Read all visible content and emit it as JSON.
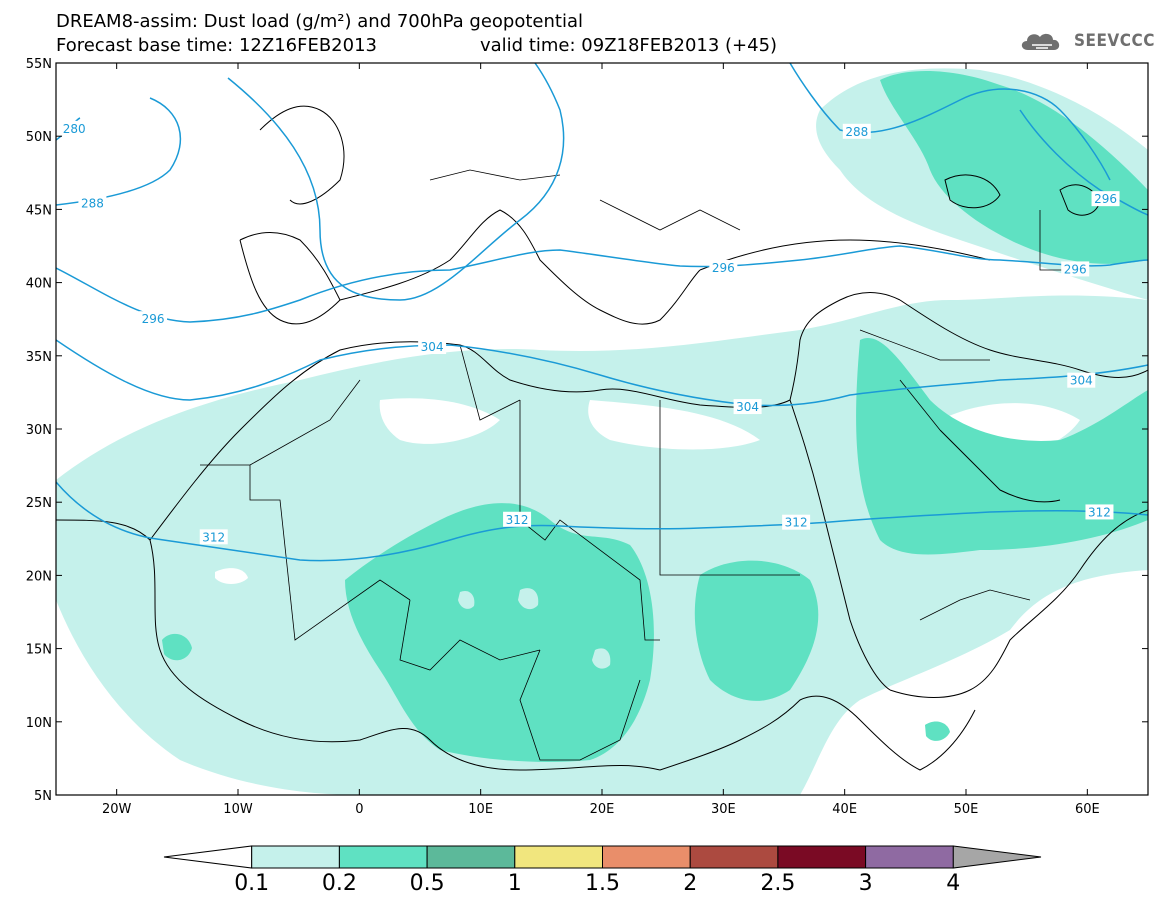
{
  "header": {
    "title_line1": "DREAM8-assim: Dust load (g/m²) and 700hPa geopotential",
    "title_line2": "Forecast base time: 12Z16FEB2013",
    "valid_time": "valid time: 09Z18FEB2013 (+45)",
    "brand": "SEEVCCC"
  },
  "map": {
    "lon_range": [
      -25,
      65
    ],
    "lat_range": [
      5,
      55
    ],
    "lat_ticks": [
      {
        "value": 55,
        "label": "55N"
      },
      {
        "value": 50,
        "label": "50N"
      },
      {
        "value": 45,
        "label": "45N"
      },
      {
        "value": 40,
        "label": "40N"
      },
      {
        "value": 35,
        "label": "35N"
      },
      {
        "value": 30,
        "label": "30N"
      },
      {
        "value": 25,
        "label": "25N"
      },
      {
        "value": 20,
        "label": "20N"
      },
      {
        "value": 15,
        "label": "15N"
      },
      {
        "value": 10,
        "label": "10N"
      },
      {
        "value": 5,
        "label": "5N"
      }
    ],
    "lon_ticks": [
      {
        "value": -20,
        "label": "20W"
      },
      {
        "value": -10,
        "label": "10W"
      },
      {
        "value": 0,
        "label": "0"
      },
      {
        "value": 10,
        "label": "10E"
      },
      {
        "value": 20,
        "label": "20E"
      },
      {
        "value": 30,
        "label": "30E"
      },
      {
        "value": 40,
        "label": "40E"
      },
      {
        "value": 50,
        "label": "50E"
      },
      {
        "value": 60,
        "label": "60E"
      }
    ],
    "contour_color": "#1a9ad6",
    "contour_labels": [
      {
        "text": "280",
        "lon": -23.5,
        "lat": 50.5
      },
      {
        "text": "288",
        "lon": -22,
        "lat": 45.4
      },
      {
        "text": "288",
        "lon": 41,
        "lat": 50.3
      },
      {
        "text": "296",
        "lon": -17,
        "lat": 37.5
      },
      {
        "text": "296",
        "lon": 30,
        "lat": 41.0
      },
      {
        "text": "296",
        "lon": 61.5,
        "lat": 45.7
      },
      {
        "text": "296",
        "lon": 59,
        "lat": 40.9
      },
      {
        "text": "304",
        "lon": 6,
        "lat": 35.6
      },
      {
        "text": "304",
        "lon": 32,
        "lat": 31.5
      },
      {
        "text": "304",
        "lon": 59.5,
        "lat": 33.3
      },
      {
        "text": "312",
        "lon": -12,
        "lat": 22.6
      },
      {
        "text": "312",
        "lon": 13,
        "lat": 23.8
      },
      {
        "text": "312",
        "lon": 36,
        "lat": 23.6
      },
      {
        "text": "312",
        "lon": 61,
        "lat": 24.3
      }
    ]
  },
  "colorbar": {
    "levels": [
      "0.1",
      "0.2",
      "0.5",
      "1",
      "1.5",
      "2",
      "2.5",
      "3",
      "4"
    ],
    "colors": [
      "#ffffff",
      "#c5f1eb",
      "#5fe1c2",
      "#5cb99a",
      "#f1e67e",
      "#e98e6a",
      "#ac4a40",
      "#7a0a24",
      "#8f6aa2",
      "#a6a6a6"
    ]
  }
}
